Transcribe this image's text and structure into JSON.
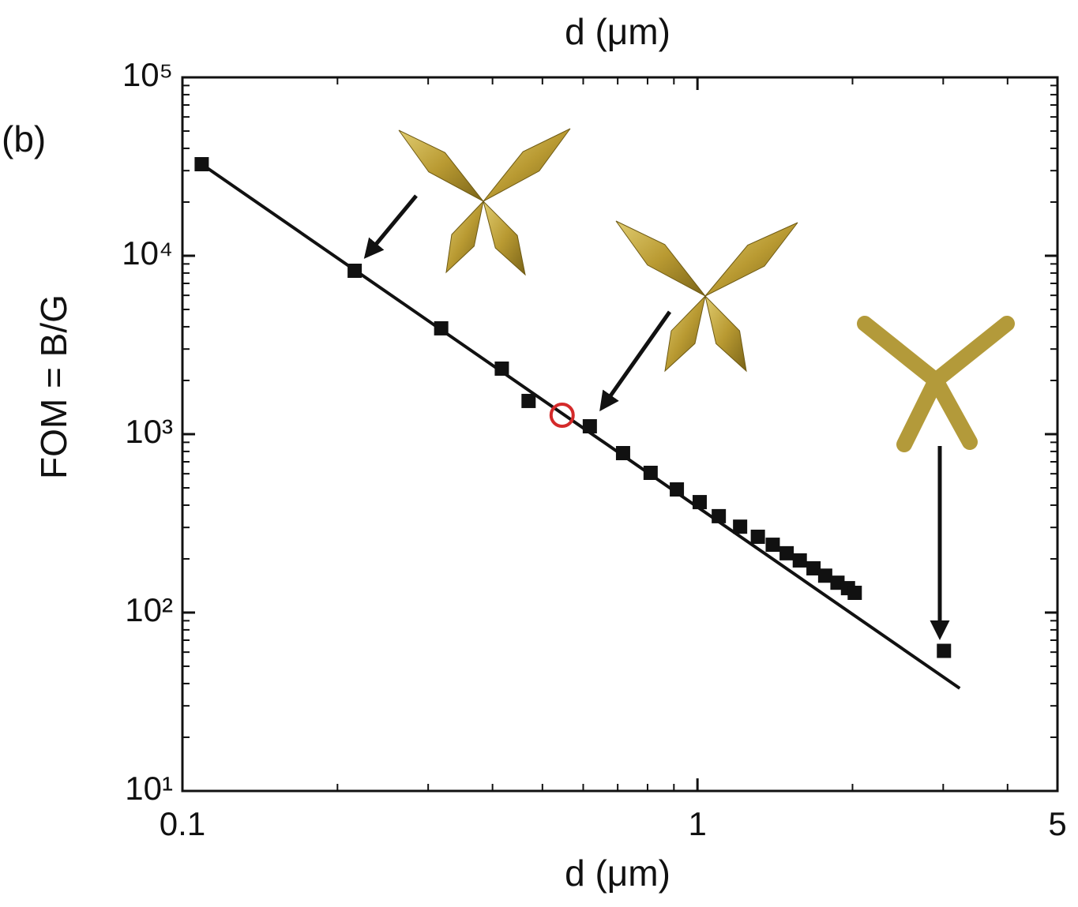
{
  "chart_data": {
    "type": "scatter",
    "title": "(b)",
    "xlabel": "d (μm)",
    "x2label": "d (μm)",
    "ylabel": "FOM = B/G",
    "xscale": "log",
    "yscale": "log",
    "xlim": [
      0.1,
      5
    ],
    "ylim": [
      10,
      100000
    ],
    "xticks": [
      0.1,
      1,
      5
    ],
    "xminorticks": [
      0.2,
      0.3,
      0.4,
      0.5,
      0.6,
      0.7,
      0.8,
      0.9,
      2,
      3,
      4
    ],
    "yticks": [
      {
        "value": 10,
        "label": "10¹"
      },
      {
        "value": 100,
        "label": "10²"
      },
      {
        "value": 1000,
        "label": "10³"
      },
      {
        "value": 10000,
        "label": "10⁴"
      },
      {
        "value": 100000,
        "label": "10⁵"
      }
    ],
    "yminorticks": [
      20,
      30,
      40,
      50,
      60,
      70,
      80,
      90,
      200,
      300,
      400,
      500,
      600,
      700,
      800,
      900,
      2000,
      3000,
      4000,
      5000,
      6000,
      7000,
      8000,
      9000,
      20000,
      30000,
      40000,
      50000,
      60000,
      70000,
      80000,
      90000
    ],
    "series": [
      {
        "mode": "line",
        "color": "#111111",
        "x": [
          0.109,
          3.23
        ],
        "values": [
          32600,
          37.6
        ]
      },
      {
        "mode": "square",
        "color": "#111111",
        "x": [
          0.109,
          0.216,
          0.318,
          0.417,
          0.47,
          0.618,
          0.717,
          0.811,
          0.912,
          1.01,
          1.1,
          1.21,
          1.31,
          1.4,
          1.49,
          1.58,
          1.68,
          1.77,
          1.87,
          1.96,
          2.02
        ],
        "values": [
          32600,
          8240,
          3920,
          2330,
          1535,
          1107,
          783,
          607,
          490,
          416,
          347,
          303,
          266,
          240,
          215,
          196,
          177,
          161,
          147,
          137,
          129
        ]
      },
      {
        "mode": "square",
        "color": "#111111",
        "x": [
          3.01
        ],
        "values": [
          61
        ]
      },
      {
        "mode": "circle",
        "color": "#d42a2a",
        "x": [
          0.546
        ],
        "values": [
          1277
        ]
      }
    ]
  }
}
